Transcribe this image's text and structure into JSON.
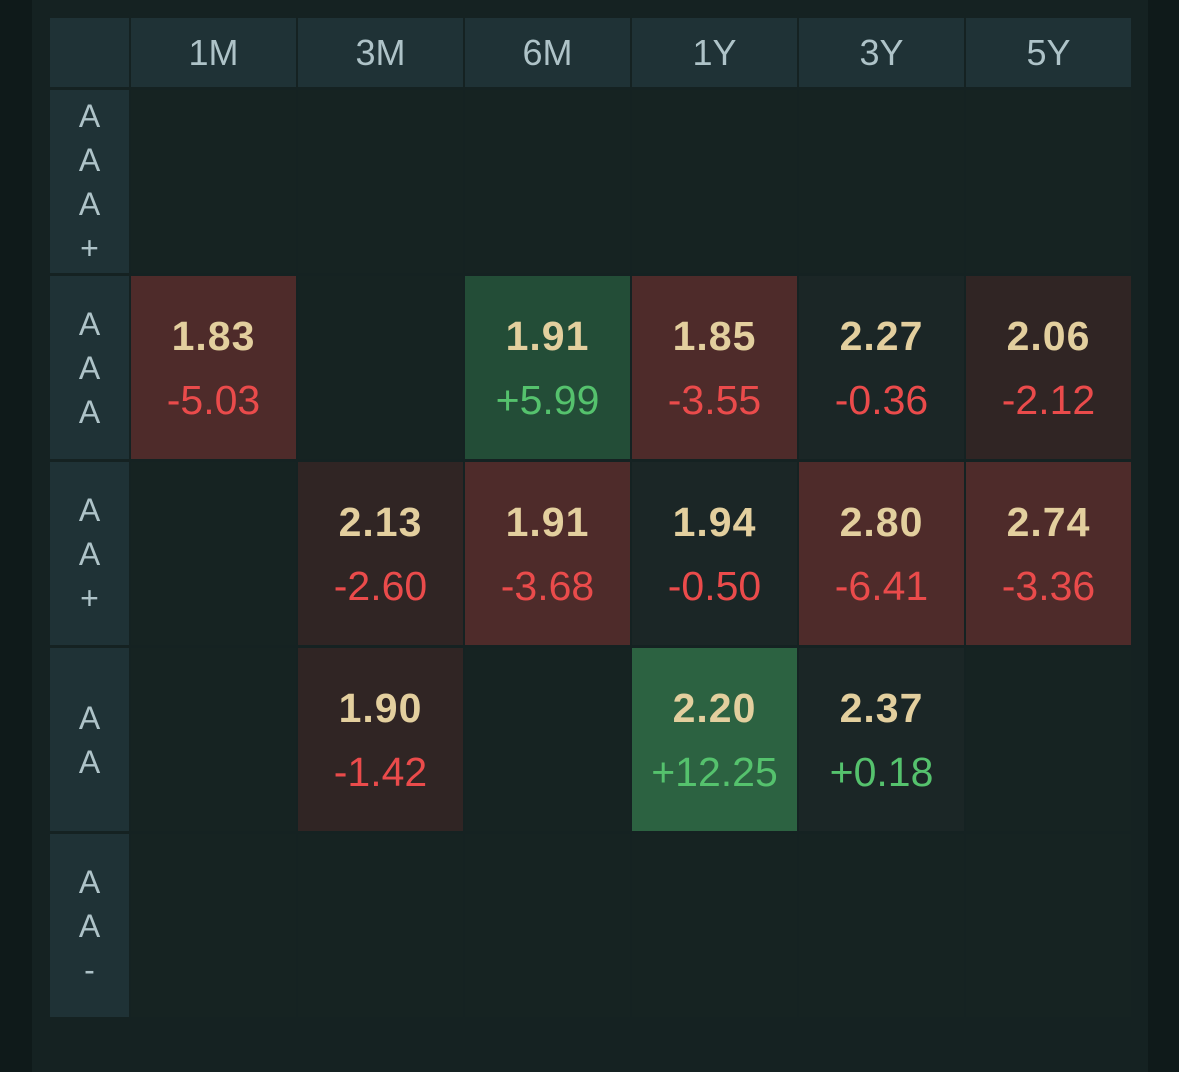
{
  "columns": [
    "1M",
    "3M",
    "6M",
    "1Y",
    "3Y",
    "5Y"
  ],
  "rows": [
    {
      "label": [
        "A",
        "A",
        "A",
        "+"
      ],
      "cells": [
        null,
        null,
        null,
        null,
        null,
        null
      ]
    },
    {
      "label": [
        "A",
        "A",
        "A"
      ],
      "cells": [
        {
          "yield": "1.83",
          "change": "-5.03"
        },
        null,
        {
          "yield": "1.91",
          "change": "+5.99"
        },
        {
          "yield": "1.85",
          "change": "-3.55"
        },
        {
          "yield": "2.27",
          "change": "-0.36"
        },
        {
          "yield": "2.06",
          "change": "-2.12"
        }
      ]
    },
    {
      "label": [
        "A",
        "A",
        "+"
      ],
      "cells": [
        null,
        {
          "yield": "2.13",
          "change": "-2.60"
        },
        {
          "yield": "1.91",
          "change": "-3.68"
        },
        {
          "yield": "1.94",
          "change": "-0.50"
        },
        {
          "yield": "2.80",
          "change": "-6.41"
        },
        {
          "yield": "2.74",
          "change": "-3.36"
        }
      ]
    },
    {
      "label": [
        "A",
        "A"
      ],
      "cells": [
        null,
        {
          "yield": "1.90",
          "change": "-1.42"
        },
        null,
        {
          "yield": "2.20",
          "change": "+12.25"
        },
        {
          "yield": "2.37",
          "change": "+0.18"
        },
        null
      ]
    },
    {
      "label": [
        "A",
        "A",
        "-"
      ],
      "cells": [
        null,
        null,
        null,
        null,
        null,
        null
      ]
    }
  ],
  "colors": {
    "background": "#0f1a1a",
    "header": "#1f3236",
    "empty_cell": "#162322",
    "yield_text": "#e3cf9e",
    "negative": "#ea4b4b",
    "positive": "#55c26d",
    "heat_red_strong": "#4e2b2a",
    "heat_red_weak": "#302524",
    "heat_green_strong": "#2c6241",
    "heat_green_mid": "#234d37"
  }
}
